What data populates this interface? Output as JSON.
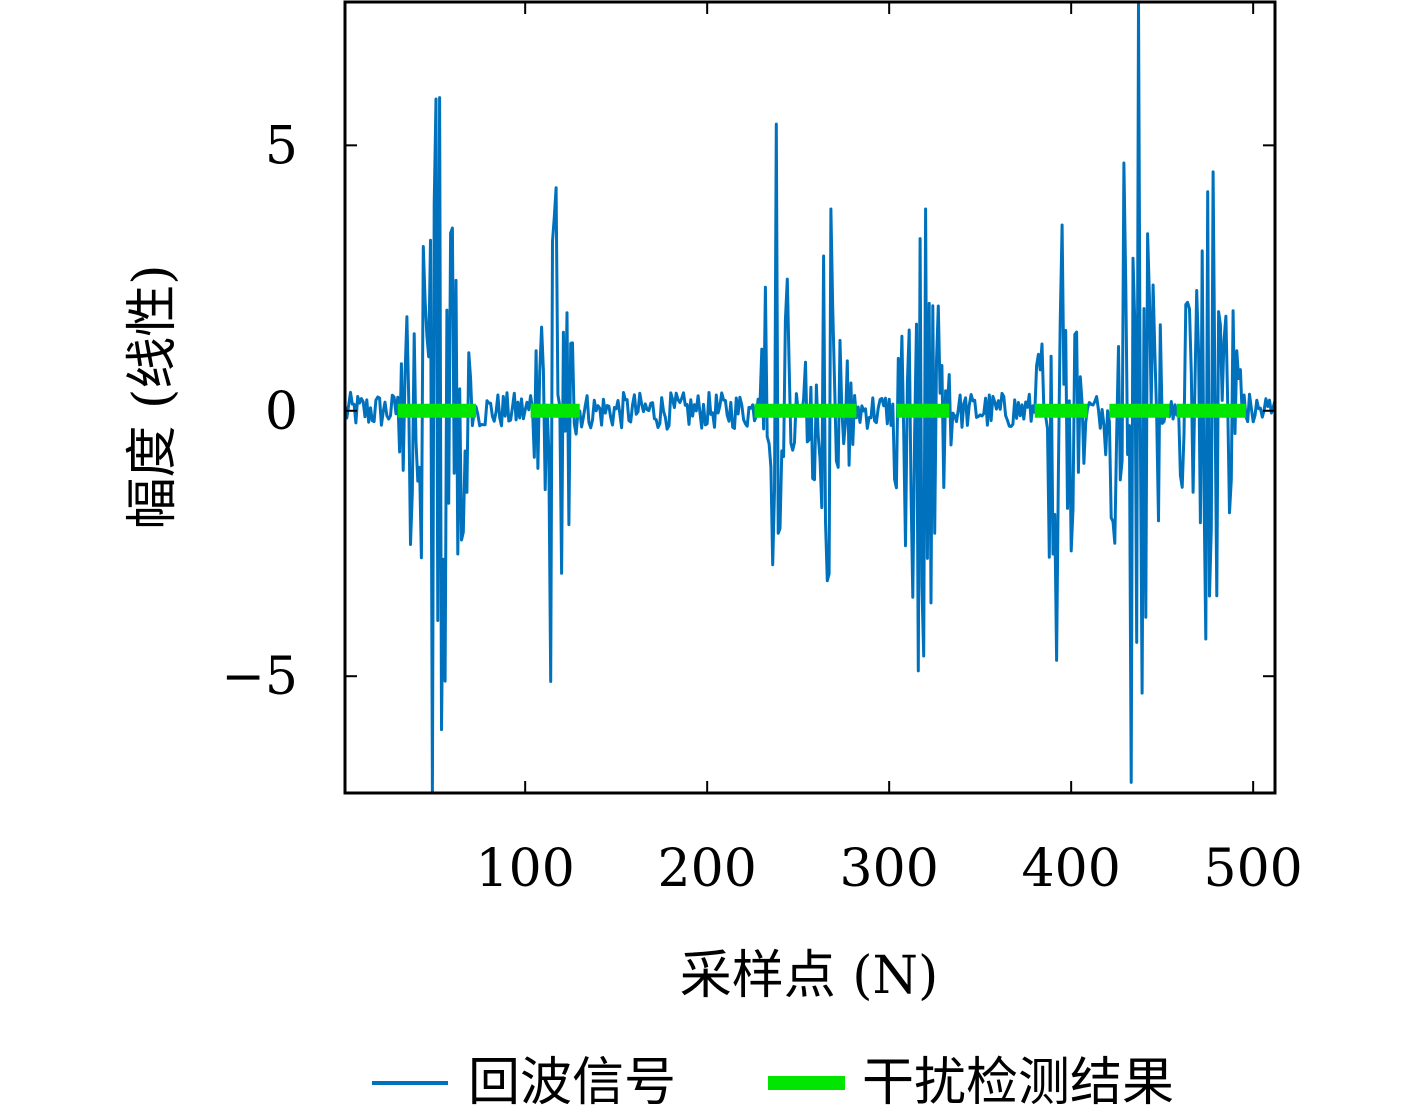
{
  "chart_data": {
    "type": "line",
    "xlabel": "采样点 (N)",
    "ylabel": "幅度 (线性)",
    "xlim": [
      1,
      512
    ],
    "ylim": [
      -7.2,
      7.7
    ],
    "xticks": [
      100,
      200,
      300,
      400,
      500
    ],
    "yticks": [
      -5,
      0,
      5
    ],
    "ytick_labels": [
      "−5",
      "0",
      "5"
    ],
    "grid": false,
    "legend_position": "bottom",
    "colors": {
      "signal": "#0072BD",
      "detection": "#00E600"
    },
    "series": [
      {
        "name": "回波信号",
        "color": "#0072BD",
        "style": "line",
        "bursts": [
          {
            "start": 30,
            "end": 72,
            "peak": 5.9,
            "trough": -7.2
          },
          {
            "start": 103,
            "end": 128,
            "peak": 4.2,
            "trough": -5.1
          },
          {
            "start": 226,
            "end": 248,
            "peak": 5.4,
            "trough": -2.9
          },
          {
            "start": 254,
            "end": 280,
            "peak": 3.8,
            "trough": -3.2
          },
          {
            "start": 302,
            "end": 334,
            "peak": 3.8,
            "trough": -4.9
          },
          {
            "start": 380,
            "end": 407,
            "peak": 3.5,
            "trough": -4.7
          },
          {
            "start": 419,
            "end": 451,
            "peak": 7.7,
            "trough": -7.0
          },
          {
            "start": 458,
            "end": 494,
            "peak": 4.5,
            "trough": -4.3
          }
        ],
        "noise_amplitude": 0.35
      },
      {
        "name": "干扰检测结果",
        "color": "#00E600",
        "style": "thick-line",
        "value": 0,
        "segments": [
          [
            30,
            73
          ],
          [
            103,
            130
          ],
          [
            226,
            282
          ],
          [
            304,
            333
          ],
          [
            380,
            409
          ],
          [
            421,
            454
          ],
          [
            458,
            496
          ]
        ]
      }
    ]
  }
}
